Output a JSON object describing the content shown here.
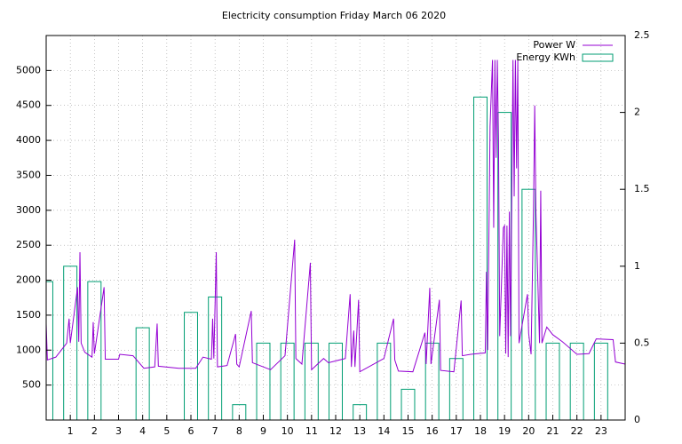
{
  "chart_data": {
    "type": "line",
    "title": "Electricity consumption Friday March 06 2020",
    "xlim": [
      0,
      24
    ],
    "xticks": [
      1,
      2,
      3,
      4,
      5,
      6,
      7,
      8,
      9,
      10,
      11,
      12,
      13,
      14,
      15,
      16,
      17,
      18,
      19,
      20,
      21,
      22,
      23
    ],
    "ylim": [
      0,
      5500
    ],
    "yticks": [
      500,
      1000,
      1500,
      2000,
      2500,
      3000,
      3500,
      4000,
      4500,
      5000
    ],
    "y2lim": [
      0,
      2.5
    ],
    "y2ticks": [
      0,
      0.5,
      1,
      1.5,
      2,
      2.5
    ],
    "grid": true,
    "legend": "top-right",
    "series": [
      {
        "name": "Power W",
        "color": "#9400d3",
        "type": "line",
        "x": [
          0,
          0.05,
          0.4,
          0.85,
          0.95,
          1.0,
          1.3,
          1.35,
          1.4,
          1.45,
          1.6,
          1.9,
          1.95,
          2.0,
          2.4,
          2.45,
          3.0,
          3.05,
          3.6,
          4.05,
          4.5,
          4.6,
          4.65,
          5.5,
          6.2,
          6.5,
          6.85,
          6.9,
          6.95,
          7.05,
          7.1,
          7.5,
          7.85,
          7.9,
          8.0,
          8.5,
          8.55,
          9.3,
          9.9,
          10.3,
          10.35,
          10.6,
          10.95,
          11.0,
          11.5,
          11.7,
          12.4,
          12.6,
          12.65,
          12.75,
          12.8,
          12.95,
          13.0,
          14.0,
          14.4,
          14.45,
          14.6,
          15.2,
          15.7,
          15.75,
          15.9,
          15.95,
          16.3,
          16.35,
          16.9,
          17.2,
          17.25,
          17.6,
          18.2,
          18.25,
          18.3,
          18.4,
          18.5,
          18.55,
          18.6,
          18.65,
          18.7,
          18.75,
          18.8,
          18.95,
          19.0,
          19.05,
          19.1,
          19.15,
          19.2,
          19.25,
          19.35,
          19.4,
          19.45,
          19.5,
          19.55,
          19.6,
          19.95,
          20.0,
          20.1,
          20.2,
          20.25,
          20.3,
          20.45,
          20.5,
          20.55,
          20.75,
          21.0,
          21.4,
          22.0,
          22.5,
          22.8,
          23.5,
          23.6,
          24.0
        ],
        "values": [
          1380,
          860,
          900,
          1100,
          1450,
          1100,
          1900,
          1120,
          2400,
          1100,
          970,
          900,
          1400,
          950,
          1900,
          870,
          870,
          940,
          920,
          740,
          760,
          1380,
          770,
          740,
          740,
          900,
          870,
          1450,
          880,
          2400,
          760,
          780,
          1230,
          800,
          760,
          1560,
          820,
          720,
          920,
          2580,
          880,
          800,
          2250,
          720,
          880,
          820,
          880,
          1800,
          760,
          1280,
          760,
          1720,
          690,
          880,
          1450,
          860,
          700,
          690,
          1250,
          800,
          1890,
          800,
          1720,
          710,
          690,
          1710,
          920,
          940,
          960,
          2120,
          1000,
          4200,
          5150,
          2750,
          5150,
          3750,
          5150,
          4000,
          1200,
          2750,
          2780,
          950,
          2780,
          900,
          2980,
          1200,
          5150,
          3200,
          5150,
          3600,
          5150,
          1100,
          1800,
          1240,
          940,
          3000,
          4500,
          3000,
          1100,
          3280,
          1100,
          1330,
          1220,
          1120,
          940,
          950,
          1160,
          1150,
          830,
          800
        ]
      },
      {
        "name": "Energy KWh",
        "color": "#009e73",
        "type": "boxes",
        "axis": "y2",
        "x": [
          0,
          1,
          2,
          3,
          4,
          5,
          6,
          7,
          8,
          9,
          10,
          11,
          12,
          13,
          14,
          15,
          16,
          17,
          18,
          19,
          20,
          21,
          22,
          23
        ],
        "values": [
          0.9,
          1.0,
          0.9,
          0,
          0.6,
          0,
          0.7,
          0.8,
          0.1,
          0.5,
          0.5,
          0.5,
          0.5,
          0.1,
          0.5,
          0.2,
          0.5,
          0.4,
          2.1,
          2.0,
          1.5,
          0.5,
          0.5,
          0.5
        ]
      }
    ]
  }
}
